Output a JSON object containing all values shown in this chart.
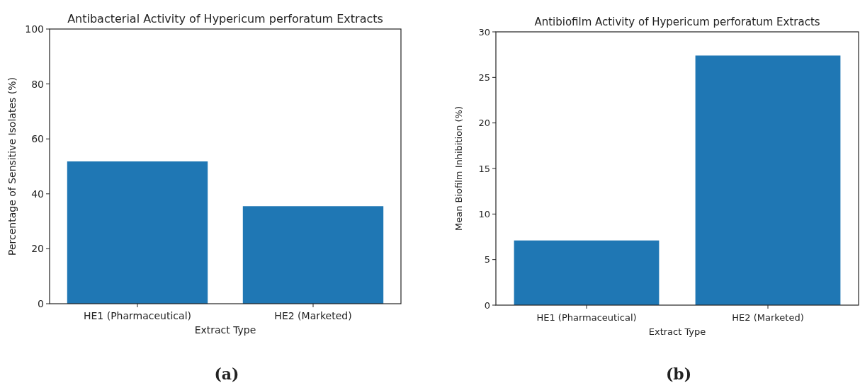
{
  "chart_data": [
    {
      "type": "bar",
      "title": "Antibacterial Activity of Hypericum perforatum Extracts",
      "xlabel": "Extract Type",
      "ylabel": "Percentage of Sensitive Isolates (%)",
      "categories": [
        "HE1 (Pharmaceutical)",
        "HE2 (Marketed)"
      ],
      "values": [
        51.8,
        35.5
      ],
      "color": "#1f77b4",
      "ylim": [
        0,
        100
      ],
      "yticks": [
        0,
        20,
        40,
        60,
        80,
        100
      ],
      "annotations": [
        "(a)"
      ]
    },
    {
      "type": "bar",
      "title": "Antibiofilm Activity of Hypericum perforatum Extracts",
      "xlabel": "Extract Type",
      "ylabel": "Mean Biofilm Inhibition (%)",
      "categories": [
        "HE1 (Pharmaceutical)",
        "HE2 (Marketed)"
      ],
      "values": [
        7.1,
        27.4
      ],
      "color": "#1f77b4",
      "ylim": [
        0,
        30
      ],
      "yticks": [
        0,
        5,
        10,
        15,
        20,
        25,
        30
      ],
      "annotations": [
        "(b)"
      ]
    }
  ]
}
